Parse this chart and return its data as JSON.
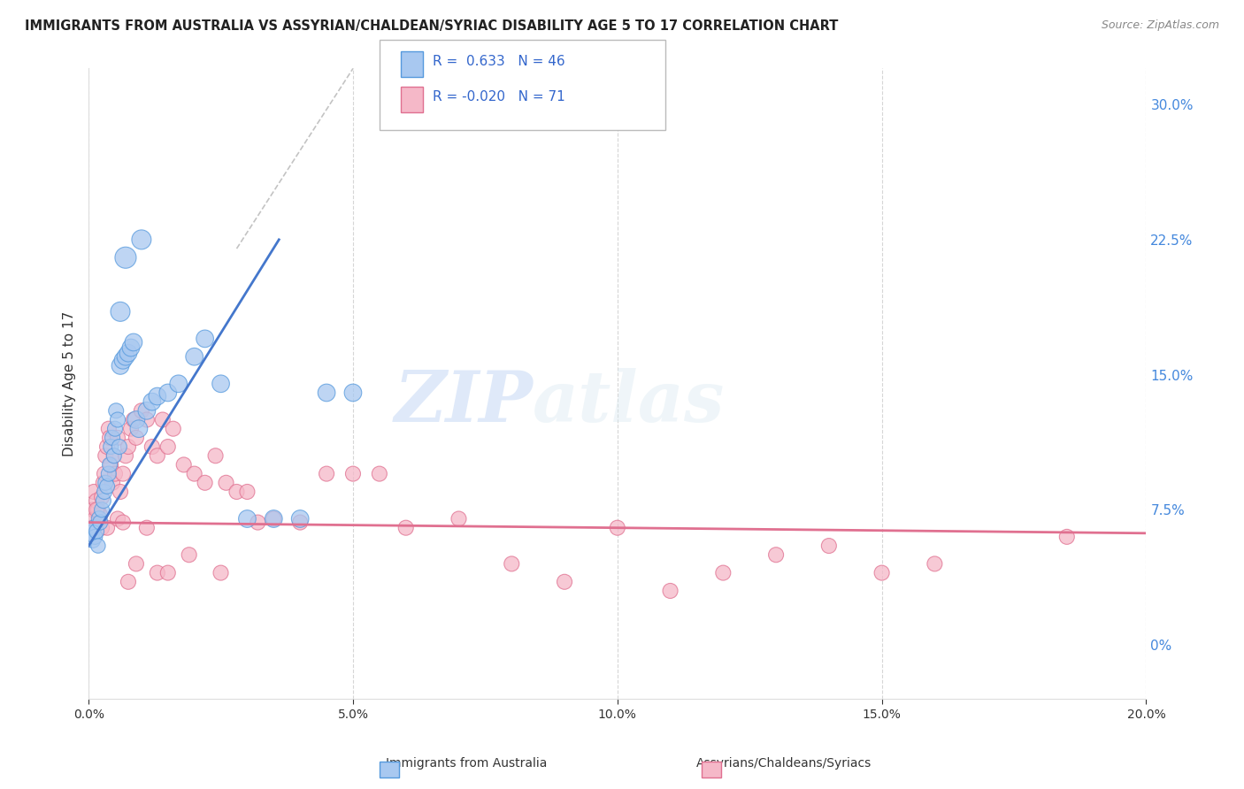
{
  "title": "IMMIGRANTS FROM AUSTRALIA VS ASSYRIAN/CHALDEAN/SYRIAC DISABILITY AGE 5 TO 17 CORRELATION CHART",
  "source_text": "Source: ZipAtlas.com",
  "ylabel": "Disability Age 5 to 17",
  "xmin": 0.0,
  "xmax": 20.0,
  "ymin": -3.0,
  "ymax": 32.0,
  "yticks_right": [
    0.0,
    7.5,
    15.0,
    22.5,
    30.0
  ],
  "ytick_labels_right": [
    "0%",
    "7.5%",
    "15.0%",
    "22.5%",
    "30.0%"
  ],
  "xticks": [
    0.0,
    5.0,
    10.0,
    15.0,
    20.0
  ],
  "xtick_labels": [
    "0.0%",
    "5.0%",
    "10.0%",
    "15.0%",
    "20.0%"
  ],
  "grid_color": "#cccccc",
  "blue_fill": "#a8c8f0",
  "blue_edge": "#5599dd",
  "pink_fill": "#f5b8c8",
  "pink_edge": "#e07090",
  "blue_line_color": "#4477cc",
  "pink_line_color": "#e07090",
  "legend_R_blue": "0.633",
  "legend_N_blue": "46",
  "legend_R_pink": "-0.020",
  "legend_N_pink": "71",
  "legend_label_blue": "Immigrants from Australia",
  "legend_label_pink": "Assyrians/Chaldeans/Syriacs",
  "watermark_zip": "ZIP",
  "watermark_atlas": "atlas",
  "title_fontsize": 10.5,
  "source_fontsize": 9,
  "blue_scatter_x": [
    0.05,
    0.08,
    0.1,
    0.12,
    0.15,
    0.18,
    0.2,
    0.22,
    0.25,
    0.28,
    0.3,
    0.32,
    0.35,
    0.38,
    0.4,
    0.42,
    0.45,
    0.48,
    0.5,
    0.52,
    0.55,
    0.58,
    0.6,
    0.65,
    0.7,
    0.75,
    0.8,
    0.85,
    0.9,
    0.95,
    1.0,
    1.1,
    1.2,
    1.3,
    1.5,
    1.7,
    2.0,
    2.2,
    2.5,
    3.0,
    3.5,
    4.0,
    4.5,
    5.0,
    0.6,
    0.7
  ],
  "blue_scatter_y": [
    6.2,
    5.8,
    6.5,
    6.0,
    6.3,
    5.5,
    7.0,
    6.8,
    7.5,
    8.0,
    8.5,
    9.0,
    8.8,
    9.5,
    10.0,
    11.0,
    11.5,
    10.5,
    12.0,
    13.0,
    12.5,
    11.0,
    15.5,
    15.8,
    16.0,
    16.2,
    16.5,
    16.8,
    12.5,
    12.0,
    22.5,
    13.0,
    13.5,
    13.8,
    14.0,
    14.5,
    16.0,
    17.0,
    14.5,
    7.0,
    7.0,
    7.0,
    14.0,
    14.0,
    18.5,
    21.5
  ],
  "blue_scatter_size": [
    180,
    150,
    160,
    150,
    150,
    140,
    160,
    150,
    150,
    150,
    150,
    150,
    150,
    150,
    150,
    150,
    150,
    150,
    150,
    150,
    150,
    150,
    200,
    200,
    200,
    200,
    200,
    200,
    200,
    200,
    250,
    200,
    200,
    200,
    200,
    200,
    200,
    200,
    200,
    200,
    200,
    200,
    200,
    200,
    250,
    300
  ],
  "pink_scatter_x": [
    0.05,
    0.08,
    0.1,
    0.12,
    0.15,
    0.18,
    0.2,
    0.22,
    0.25,
    0.28,
    0.3,
    0.32,
    0.35,
    0.38,
    0.4,
    0.42,
    0.45,
    0.48,
    0.5,
    0.55,
    0.6,
    0.65,
    0.7,
    0.75,
    0.8,
    0.85,
    0.9,
    1.0,
    1.1,
    1.2,
    1.3,
    1.4,
    1.5,
    1.6,
    1.8,
    2.0,
    2.2,
    2.4,
    2.6,
    2.8,
    3.0,
    3.2,
    3.5,
    4.0,
    4.5,
    5.0,
    5.5,
    6.0,
    7.0,
    8.0,
    9.0,
    10.0,
    11.0,
    12.0,
    13.0,
    14.0,
    15.0,
    16.0,
    18.5,
    0.15,
    0.25,
    0.35,
    0.55,
    0.65,
    0.75,
    0.9,
    1.1,
    1.3,
    1.5,
    1.9,
    2.5
  ],
  "pink_scatter_y": [
    6.5,
    7.5,
    8.5,
    7.0,
    8.0,
    7.5,
    6.8,
    7.2,
    8.2,
    9.0,
    9.5,
    10.5,
    11.0,
    12.0,
    11.5,
    10.0,
    9.0,
    10.5,
    9.5,
    11.5,
    8.5,
    9.5,
    10.5,
    11.0,
    12.0,
    12.5,
    11.5,
    13.0,
    12.5,
    11.0,
    10.5,
    12.5,
    11.0,
    12.0,
    10.0,
    9.5,
    9.0,
    10.5,
    9.0,
    8.5,
    8.5,
    6.8,
    7.0,
    6.8,
    9.5,
    9.5,
    9.5,
    6.5,
    7.0,
    4.5,
    3.5,
    6.5,
    3.0,
    4.0,
    5.0,
    5.5,
    4.0,
    4.5,
    6.0,
    7.5,
    6.5,
    6.5,
    7.0,
    6.8,
    3.5,
    4.5,
    6.5,
    4.0,
    4.0,
    5.0,
    4.0
  ],
  "pink_scatter_size": [
    150,
    150,
    150,
    150,
    150,
    150,
    150,
    150,
    150,
    150,
    150,
    150,
    150,
    150,
    150,
    150,
    150,
    150,
    150,
    150,
    150,
    150,
    150,
    150,
    150,
    150,
    150,
    150,
    150,
    150,
    150,
    150,
    150,
    150,
    150,
    150,
    150,
    150,
    150,
    150,
    150,
    150,
    150,
    150,
    150,
    150,
    150,
    150,
    150,
    150,
    150,
    150,
    150,
    150,
    150,
    150,
    150,
    150,
    150,
    150,
    150,
    150,
    150,
    150,
    150,
    150,
    150,
    150,
    150,
    150,
    150
  ],
  "blue_trend_x0": 0.0,
  "blue_trend_y0": 5.5,
  "blue_trend_x1": 3.6,
  "blue_trend_y1": 22.5,
  "pink_trend_x0": 0.0,
  "pink_trend_y0": 6.8,
  "pink_trend_x1": 20.0,
  "pink_trend_y1": 6.2,
  "diag_x0": 2.8,
  "diag_y0": 22.0,
  "diag_x1": 5.0,
  "diag_y1": 32.0
}
